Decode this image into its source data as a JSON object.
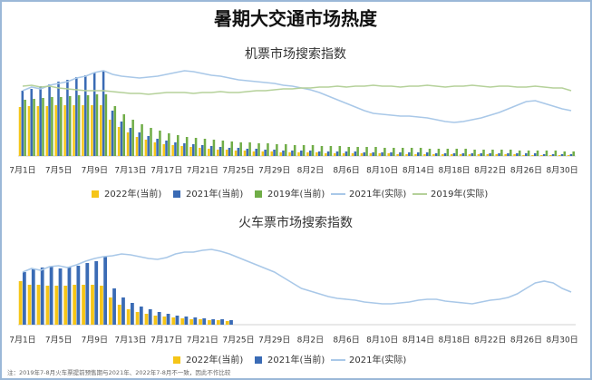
{
  "title": "暑期大交通市场热度",
  "note": "注：2019年7-8月火车票提前预售期与2021年、2022年7-8月不一致，因此不作比较",
  "chart_data": [
    {
      "type": "bar",
      "title": "机票市场搜索指数",
      "legend": "bottom",
      "ylim": [
        0,
        100
      ],
      "categories": [
        "7月1日",
        null,
        null,
        null,
        "7月5日",
        null,
        null,
        null,
        "7月9日",
        null,
        null,
        null,
        "7月13日",
        null,
        null,
        null,
        "7月17日",
        null,
        null,
        null,
        "7月21日",
        null,
        null,
        null,
        "7月25日",
        null,
        null,
        null,
        "7月29日",
        null,
        null,
        null,
        "8月2日",
        null,
        null,
        null,
        "8月6日",
        null,
        null,
        null,
        "8月10日",
        null,
        null,
        null,
        "8月14日",
        null,
        null,
        null,
        "8月18日",
        null,
        null,
        null,
        "8月22日",
        null,
        null,
        null,
        "8月26日",
        null,
        null,
        null,
        "8月30日",
        null
      ],
      "series": [
        {
          "name": "2022年(当前)",
          "type": "bar",
          "color": "#f5c518",
          "values": [
            54,
            55,
            55,
            55,
            56,
            56,
            56,
            56,
            56,
            56,
            40,
            32,
            26,
            21,
            18,
            15,
            13,
            12,
            11,
            10,
            9,
            8,
            7,
            7,
            6,
            6,
            5,
            5,
            5,
            4,
            4,
            4,
            4,
            4,
            3,
            3,
            3,
            3,
            3,
            3,
            3,
            3,
            2,
            2,
            2,
            2,
            2,
            2,
            2,
            2,
            2,
            2,
            2,
            2,
            2,
            2,
            1,
            1,
            1,
            1,
            1,
            1
          ]
        },
        {
          "name": "2021年(当前)",
          "type": "bar",
          "color": "#3a6bb5",
          "values": [
            72,
            74,
            77,
            79,
            82,
            84,
            87,
            89,
            92,
            94,
            50,
            38,
            31,
            26,
            22,
            19,
            17,
            15,
            14,
            13,
            12,
            11,
            10,
            9,
            9,
            8,
            8,
            7,
            7,
            6,
            6,
            6,
            6,
            5,
            5,
            5,
            5,
            5,
            4,
            4,
            4,
            4,
            4,
            4,
            4,
            4,
            3,
            3,
            3,
            3,
            3,
            3,
            3,
            3,
            3,
            3,
            3,
            3,
            2,
            2,
            2,
            2
          ]
        },
        {
          "name": "2019年(当前)",
          "type": "bar",
          "color": "#70ad47",
          "values": [
            62,
            63,
            64,
            65,
            65,
            66,
            67,
            67,
            68,
            68,
            55,
            46,
            40,
            35,
            31,
            28,
            25,
            23,
            21,
            20,
            19,
            18,
            17,
            16,
            15,
            15,
            14,
            14,
            13,
            13,
            12,
            12,
            12,
            11,
            11,
            11,
            10,
            10,
            10,
            10,
            9,
            9,
            9,
            9,
            9,
            8,
            8,
            8,
            8,
            8,
            7,
            7,
            7,
            7,
            7,
            6,
            6,
            6,
            6,
            6,
            5,
            5
          ]
        },
        {
          "name": "2021年(实际)",
          "type": "line",
          "color": "#a9c8e8",
          "values": [
            72,
            76,
            74,
            78,
            80,
            82,
            86,
            88,
            92,
            94,
            90,
            88,
            87,
            86,
            87,
            88,
            90,
            92,
            94,
            93,
            91,
            89,
            88,
            86,
            84,
            83,
            82,
            81,
            80,
            78,
            77,
            75,
            73,
            70,
            66,
            62,
            58,
            54,
            50,
            47,
            46,
            45,
            44,
            44,
            43,
            42,
            40,
            38,
            37,
            38,
            40,
            42,
            45,
            48,
            52,
            56,
            60,
            61,
            58,
            55,
            52,
            50
          ]
        },
        {
          "name": "2019年(实际)",
          "type": "line",
          "color": "#b5d19a",
          "values": [
            77,
            78,
            76,
            77,
            75,
            74,
            73,
            72,
            72,
            72,
            71,
            70,
            69,
            69,
            68,
            69,
            70,
            70,
            70,
            69,
            70,
            70,
            71,
            70,
            70,
            71,
            72,
            72,
            73,
            74,
            74,
            75,
            75,
            76,
            76,
            77,
            76,
            77,
            77,
            78,
            77,
            77,
            76,
            77,
            77,
            78,
            77,
            76,
            77,
            77,
            78,
            77,
            76,
            77,
            77,
            76,
            76,
            77,
            76,
            75,
            75,
            72
          ]
        }
      ]
    },
    {
      "type": "bar",
      "title": "火车票市场搜索指数",
      "legend": "bottom",
      "ylim": [
        0,
        100
      ],
      "categories": [
        "7月1日",
        null,
        null,
        null,
        "7月5日",
        null,
        null,
        null,
        "7月9日",
        null,
        null,
        null,
        "7月13日",
        null,
        null,
        null,
        "7月17日",
        null,
        null,
        null,
        "7月21日",
        null,
        null,
        null,
        "7月25日",
        null,
        null,
        null,
        "7月29日",
        null,
        null,
        null,
        "8月2日",
        null,
        null,
        null,
        "8月6日",
        null,
        null,
        null,
        "8月10日",
        null,
        null,
        null,
        "8月14日",
        null,
        null,
        null,
        "8月18日",
        null,
        null,
        null,
        "8月22日",
        null,
        null,
        null,
        "8月26日",
        null,
        null,
        null,
        "8月30日",
        null
      ],
      "series": [
        {
          "name": "2022年(当前)",
          "type": "bar",
          "color": "#f5c518",
          "values": [
            48,
            44,
            44,
            43,
            43,
            43,
            44,
            44,
            44,
            43,
            30,
            22,
            17,
            14,
            12,
            10,
            9,
            8,
            7,
            6,
            6,
            5,
            5,
            4,
            null,
            null,
            null,
            null,
            null,
            null,
            null,
            null,
            null,
            null,
            null,
            null,
            null,
            null,
            null,
            null,
            null,
            null,
            null,
            null,
            null,
            null,
            null,
            null,
            null,
            null,
            null,
            null,
            null,
            null,
            null,
            null,
            null,
            null,
            null,
            null,
            null,
            null
          ]
        },
        {
          "name": "2021年(当前)",
          "type": "bar",
          "color": "#3a6bb5",
          "values": [
            58,
            62,
            63,
            64,
            62,
            64,
            65,
            68,
            70,
            75,
            40,
            30,
            24,
            20,
            17,
            14,
            12,
            10,
            9,
            8,
            7,
            6,
            6,
            5,
            null,
            null,
            null,
            null,
            null,
            null,
            null,
            null,
            null,
            null,
            null,
            null,
            null,
            null,
            null,
            null,
            null,
            null,
            null,
            null,
            null,
            null,
            null,
            null,
            null,
            null,
            null,
            null,
            null,
            null,
            null,
            null,
            null,
            null,
            null,
            null,
            null,
            null
          ]
        },
        {
          "name": "2021年(实际)",
          "type": "line",
          "color": "#a9c8e8",
          "values": [
            58,
            62,
            60,
            64,
            65,
            63,
            66,
            70,
            73,
            75,
            76,
            78,
            77,
            75,
            73,
            72,
            74,
            78,
            80,
            80,
            82,
            83,
            81,
            78,
            74,
            70,
            66,
            62,
            58,
            52,
            46,
            40,
            37,
            34,
            31,
            29,
            28,
            27,
            25,
            24,
            23,
            23,
            24,
            25,
            27,
            28,
            28,
            26,
            25,
            24,
            23,
            25,
            27,
            28,
            30,
            34,
            40,
            46,
            48,
            46,
            40,
            36
          ]
        }
      ]
    }
  ]
}
